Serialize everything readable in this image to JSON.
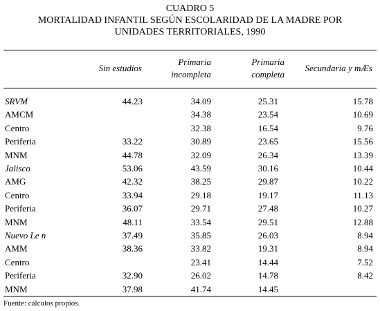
{
  "header": {
    "label": "CUADRO 5",
    "title_lines": [
      "MORTALIDAD INFANTIL SEGÚN ESCOLARIDAD DE LA MADRE POR",
      "UNIDADES TERRITORIALES, 1990"
    ]
  },
  "table": {
    "columns": [
      [
        "Sin estudios"
      ],
      [
        "Primaria",
        "incompleta"
      ],
      [
        "Primaria",
        "completa"
      ],
      [
        "Secundaria y mÆs"
      ]
    ],
    "rows": [
      {
        "label": "SRVM",
        "italic": true,
        "cells": [
          "44.23",
          "34.09",
          "25.31",
          "15.78"
        ]
      },
      {
        "label": "AMCM",
        "cells": [
          null,
          "34.38",
          "23.54",
          "10.69"
        ]
      },
      {
        "label": "Centro",
        "cells": [
          null,
          "32.38",
          "16.54",
          "9.76"
        ]
      },
      {
        "label": "Periferia",
        "cells": [
          "33.22",
          "30.89",
          "23.65",
          "15.56"
        ]
      },
      {
        "label": "MNM",
        "cells": [
          "44.78",
          "32.09",
          "26.34",
          "13.39"
        ]
      },
      {
        "label": "Jalisco",
        "italic": true,
        "cells": [
          "53.06",
          "43.59",
          "30.16",
          "10.44"
        ]
      },
      {
        "label": "AMG",
        "cells": [
          "42.32",
          "38.25",
          "29.87",
          "10.22"
        ]
      },
      {
        "label": "Centro",
        "cells": [
          "33.94",
          "29.18",
          "19.17",
          "11.13"
        ]
      },
      {
        "label": "Periferia",
        "cells": [
          "36.07",
          "29.71",
          "27.48",
          "10.27"
        ]
      },
      {
        "label": "MNM",
        "cells": [
          "48.11",
          "33.54",
          "29.51",
          "12.88"
        ]
      },
      {
        "label": "Nuevo Le n",
        "italic": true,
        "cells": [
          "37.49",
          "35.85",
          "26.03",
          "8.94"
        ]
      },
      {
        "label": "AMM",
        "cells": [
          "38.36",
          "33.82",
          "19.31",
          "8.94"
        ]
      },
      {
        "label": "Centro",
        "cells": [
          null,
          "23.41",
          "14.44",
          "7.52"
        ]
      },
      {
        "label": "Periferia",
        "cells": [
          "32.90",
          "26.02",
          "14.78",
          "8.42"
        ]
      },
      {
        "label": "MNM",
        "cells": [
          "37.98",
          "41.74",
          "14.45",
          null
        ]
      }
    ]
  },
  "footer": {
    "source": "Fuente: cálculos propios."
  }
}
